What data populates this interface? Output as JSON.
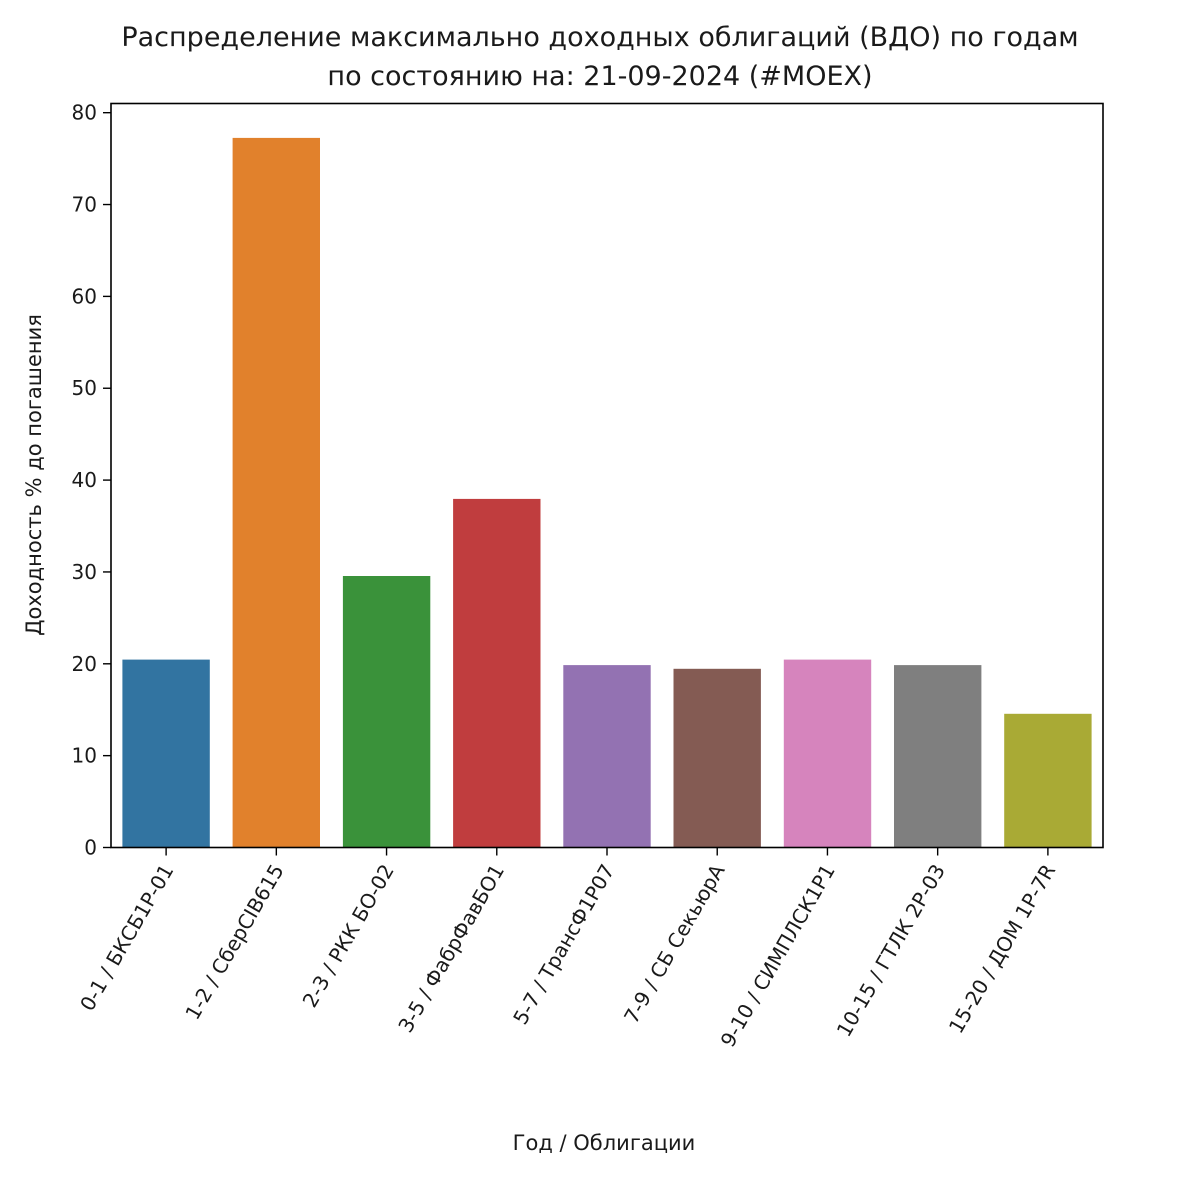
{
  "chart_data": {
    "type": "bar",
    "title": "Распределение максимально доходных облигаций (ВДО) по годам",
    "subtitle": "по состоянию на: 21-09-2024 (#MOEX)",
    "xlabel": "Год / Облигации",
    "ylabel": "Доходность % до погашения",
    "categories": [
      "0-1 / БКСБ1Р-01",
      "1-2 / СберCIB615",
      "2-3 / РКК БО-02",
      "3-5 / ФабрФавБО1",
      "5-7 / ТрансФ1Р07",
      "7-9 / СБ СекьюрА",
      "9-10 / СИМПЛСК1Р1",
      "10-15 / ГТЛК 2Р-03",
      "15-20 / ДОМ 1Р-7R"
    ],
    "values": [
      20.5,
      77.3,
      29.6,
      38.0,
      19.9,
      19.5,
      20.5,
      19.9,
      14.6
    ],
    "colors": [
      "#3274a1",
      "#e1812c",
      "#3a923a",
      "#c03d3e",
      "#9372b2",
      "#845b53",
      "#d684bd",
      "#7f7f7f",
      "#a9aa35"
    ],
    "yticks": [
      0,
      10,
      20,
      30,
      40,
      50,
      60,
      70,
      80
    ],
    "ylim": [
      0,
      81
    ],
    "grid": false,
    "legend": null,
    "xtick_rotation": -60
  }
}
